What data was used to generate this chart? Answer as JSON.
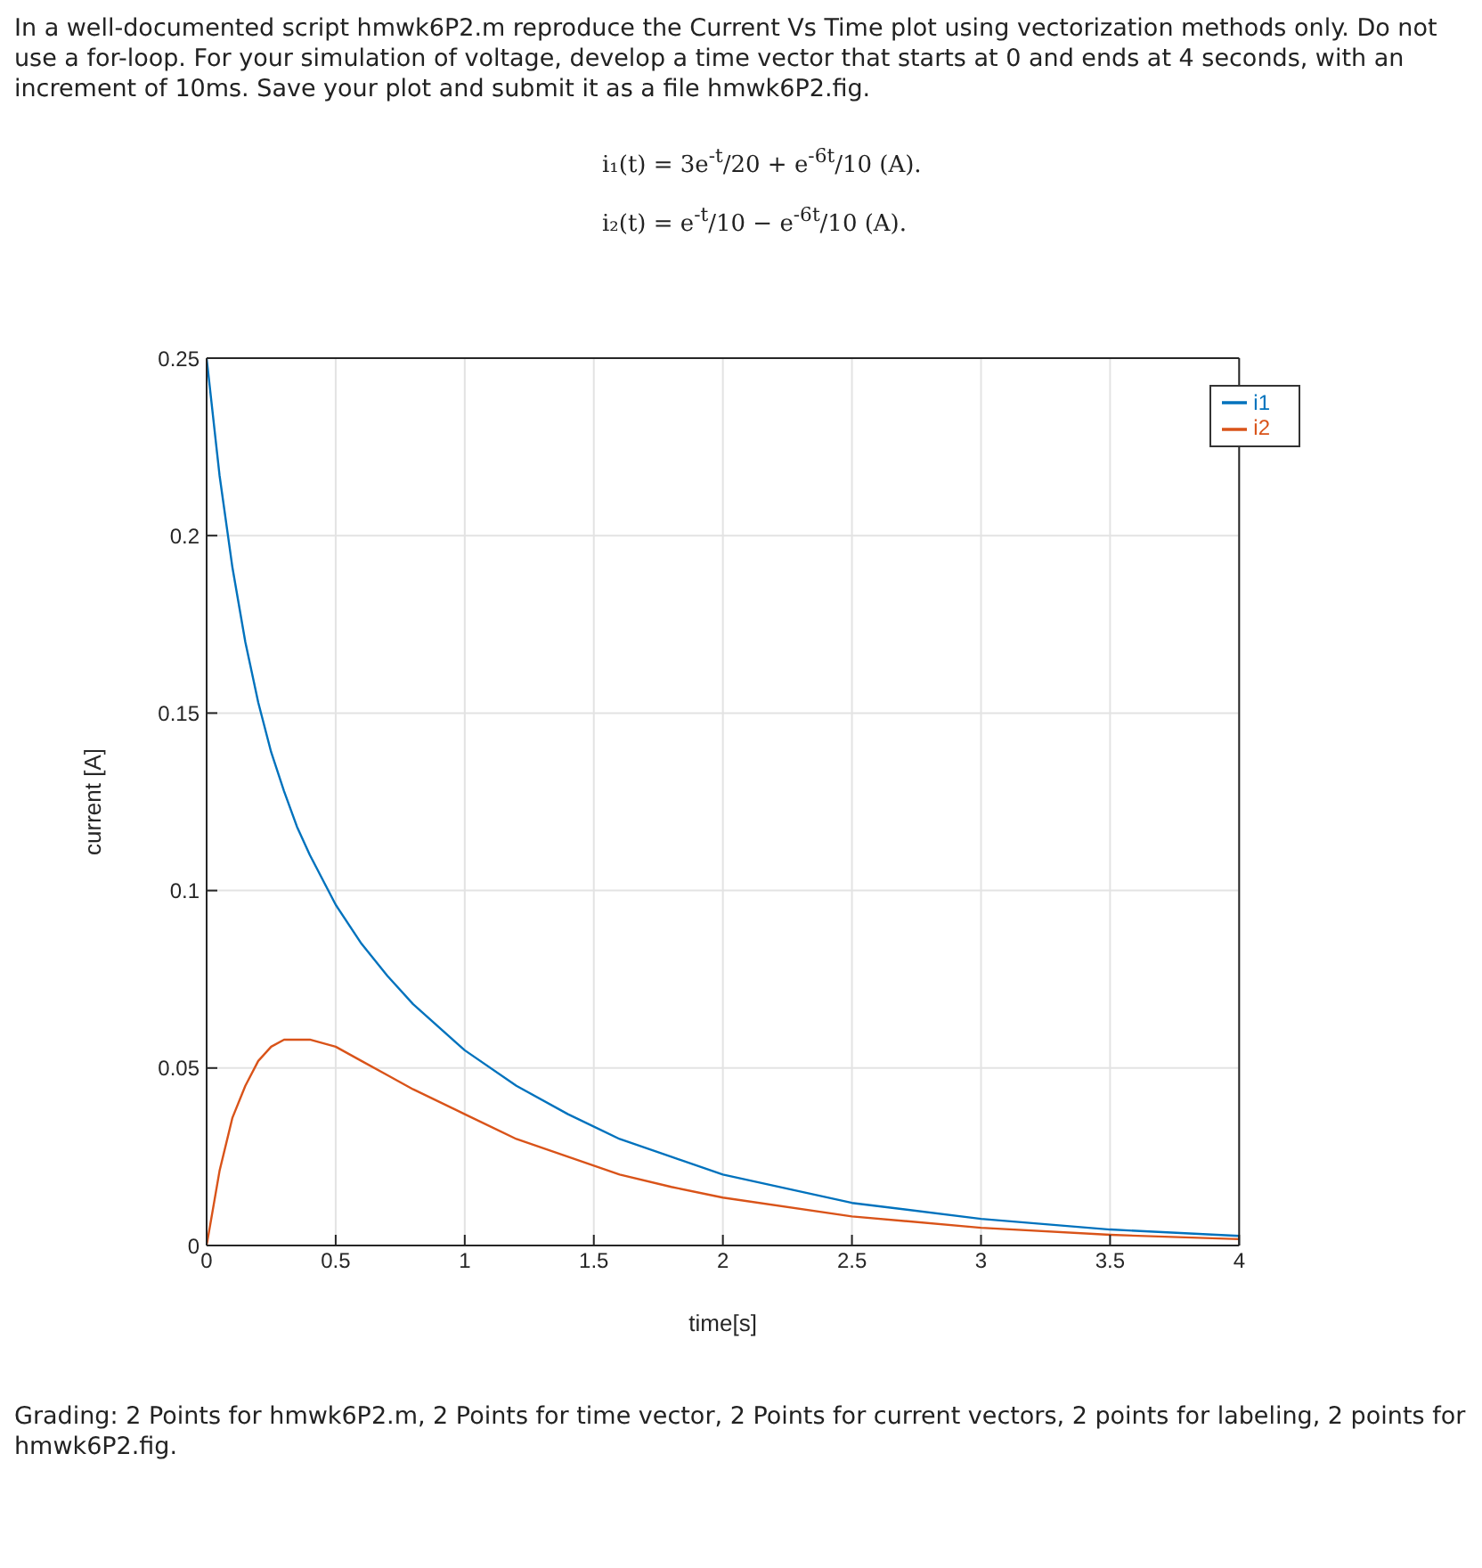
{
  "chart_data": {
    "type": "line",
    "title": "In a well-documented script hmwk6P2.m reproduce the Current Vs Time plot using vectorization methods only. Do not use a for-loop. For your simulation of voltage, develop a time vector that starts at 0 and ends at 4 seconds, with an increment of 10ms. Save your plot and submit it as a file hmwk6P2.fig.",
    "annotations": [
      "i₁(t) = 3e$^{-t}$/20 + e$^{-6t}$/10 (A).",
      "i₂(t) = e$^{-t}$/10 − e$^{-6t}$/10 (A).",
      "Grading: 2 Points for hmwk6P2.m, 2 Points for time vector, 2 Points for current vectors, 2 points for labeling, 2 points for hmwk6P2.fig."
    ],
    "xlabel": "time[s]",
    "ylabel": "current [A]",
    "x": [
      0,
      0.05,
      0.1,
      0.15,
      0.2,
      0.25,
      0.3,
      0.35,
      0.4,
      0.5,
      0.6,
      0.7,
      0.8,
      1.0,
      1.2,
      1.4,
      1.6,
      1.8,
      2.0,
      2.5,
      3.0,
      3.5,
      4.0
    ],
    "series": [
      {
        "name": "i1",
        "color": "#0072bd",
        "values": [
          0.25,
          0.217,
          0.191,
          0.17,
          0.153,
          0.139,
          0.128,
          0.118,
          0.11,
          0.096,
          0.085,
          0.076,
          0.068,
          0.055,
          0.045,
          0.037,
          0.03,
          0.025,
          0.02,
          0.012,
          0.0075,
          0.0045,
          0.0027
        ]
      },
      {
        "name": "i2",
        "color": "#d95319",
        "values": [
          0,
          0.021,
          0.036,
          0.045,
          0.052,
          0.056,
          0.058,
          0.058,
          0.058,
          0.056,
          0.052,
          0.048,
          0.044,
          0.037,
          0.03,
          0.025,
          0.02,
          0.0165,
          0.0135,
          0.0082,
          0.005,
          0.003,
          0.0018
        ]
      }
    ],
    "xlim": [
      0,
      4
    ],
    "xticks": [
      0,
      0.5,
      1,
      1.5,
      2,
      2.5,
      3,
      3.5,
      4
    ],
    "ylim": [
      0,
      0.25
    ],
    "yticks": [
      0,
      0.05,
      0.1,
      0.15,
      0.2,
      0.25
    ],
    "grid": true,
    "legend": "top right",
    "marker": "none",
    "line_style": "solid"
  }
}
